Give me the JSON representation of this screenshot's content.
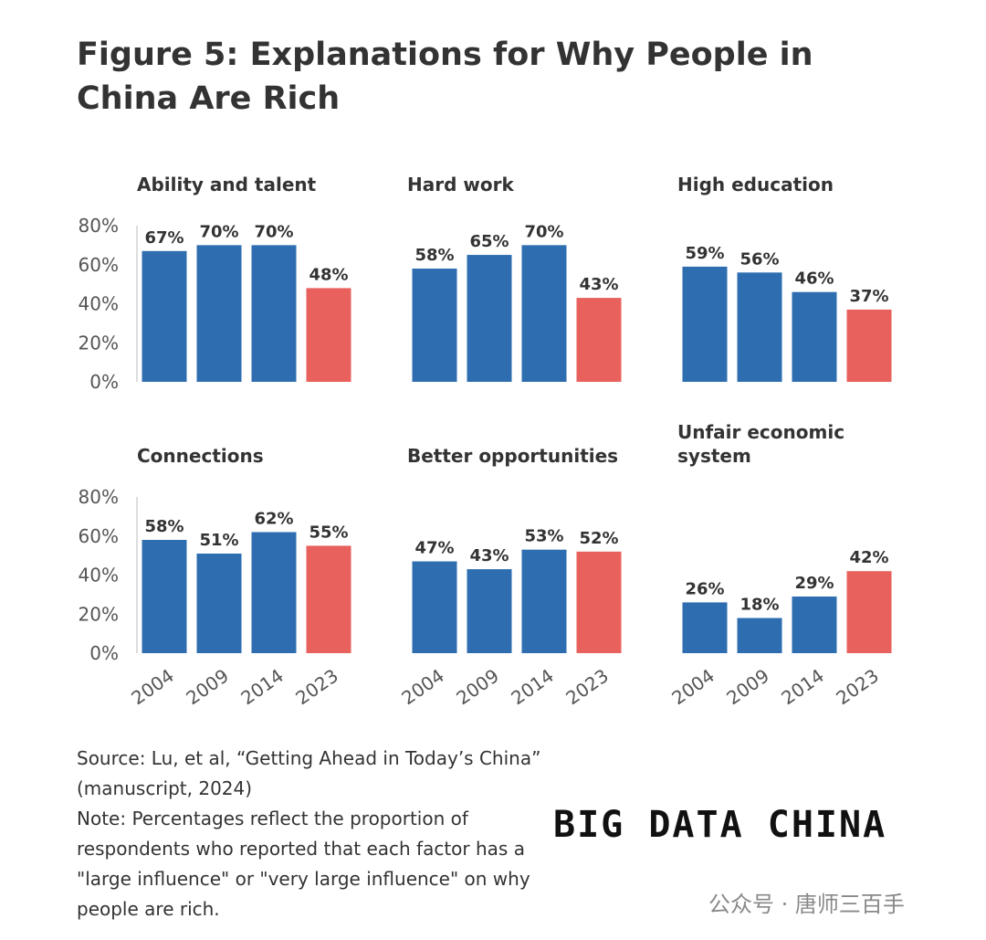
{
  "title": "Figure 5: Explanations for Why People in China Are Rich",
  "chart_data": [
    {
      "type": "bar",
      "title": "Ability and talent",
      "categories": [
        null,
        null,
        null,
        null
      ],
      "values": [
        67,
        70,
        70,
        48
      ],
      "value_labels": [
        "67%",
        "70%",
        "70%",
        "48%"
      ],
      "colors": [
        "#2e6eb0",
        "#2e6eb0",
        "#2e6eb0",
        "#e8615d"
      ],
      "ylim": [
        0,
        80
      ],
      "yticks": [
        {
          "value": 0,
          "label": "0%"
        },
        {
          "value": 20,
          "label": "20%"
        },
        {
          "value": 40,
          "label": "40%"
        },
        {
          "value": 60,
          "label": "60%"
        },
        {
          "value": 80,
          "label": "80%"
        }
      ]
    },
    {
      "type": "bar",
      "title": "Hard work",
      "categories": [
        null,
        null,
        null,
        null
      ],
      "values": [
        58,
        65,
        70,
        43
      ],
      "value_labels": [
        "58%",
        "65%",
        "70%",
        "43%"
      ],
      "colors": [
        "#2e6eb0",
        "#2e6eb0",
        "#2e6eb0",
        "#e8615d"
      ],
      "ylim": [
        0,
        80
      ]
    },
    {
      "type": "bar",
      "title": "High education",
      "categories": [
        null,
        null,
        null,
        null
      ],
      "values": [
        59,
        56,
        46,
        37
      ],
      "value_labels": [
        "59%",
        "56%",
        "46%",
        "37%"
      ],
      "colors": [
        "#2e6eb0",
        "#2e6eb0",
        "#2e6eb0",
        "#e8615d"
      ],
      "ylim": [
        0,
        80
      ]
    },
    {
      "type": "bar",
      "title": "Connections",
      "categories": [
        "2004",
        "2009",
        "2014",
        "2023"
      ],
      "values": [
        58,
        51,
        62,
        55
      ],
      "value_labels": [
        "58%",
        "51%",
        "62%",
        "55%"
      ],
      "colors": [
        "#2e6eb0",
        "#2e6eb0",
        "#2e6eb0",
        "#e8615d"
      ],
      "ylim": [
        0,
        80
      ],
      "yticks": [
        {
          "value": 0,
          "label": "0%"
        },
        {
          "value": 20,
          "label": "20%"
        },
        {
          "value": 40,
          "label": "40%"
        },
        {
          "value": 60,
          "label": "60%"
        },
        {
          "value": 80,
          "label": "80%"
        }
      ]
    },
    {
      "type": "bar",
      "title": "Better opportunities",
      "categories": [
        "2004",
        "2009",
        "2014",
        "2023"
      ],
      "values": [
        47,
        43,
        53,
        52
      ],
      "value_labels": [
        "47%",
        "43%",
        "53%",
        "52%"
      ],
      "colors": [
        "#2e6eb0",
        "#2e6eb0",
        "#2e6eb0",
        "#e8615d"
      ],
      "ylim": [
        0,
        80
      ]
    },
    {
      "type": "bar",
      "title": "Unfair economic system",
      "categories": [
        "2004",
        "2009",
        "2014",
        "2023"
      ],
      "values": [
        26,
        18,
        29,
        42
      ],
      "value_labels": [
        "26%",
        "18%",
        "29%",
        "42%"
      ],
      "colors": [
        "#2e6eb0",
        "#2e6eb0",
        "#2e6eb0",
        "#e8615d"
      ],
      "ylim": [
        0,
        80
      ]
    }
  ],
  "source": "Source: Lu, et al, “Getting Ahead in Today’s China” (manuscript, 2024)",
  "note": "Note: Percentages reflect the proportion of respondents who reported that each factor has a \"large influence\" or \"very large influence\" on why people are rich.",
  "logo": "BIG DATA CHINA",
  "watermark": "公众号 · 唐师三百手"
}
